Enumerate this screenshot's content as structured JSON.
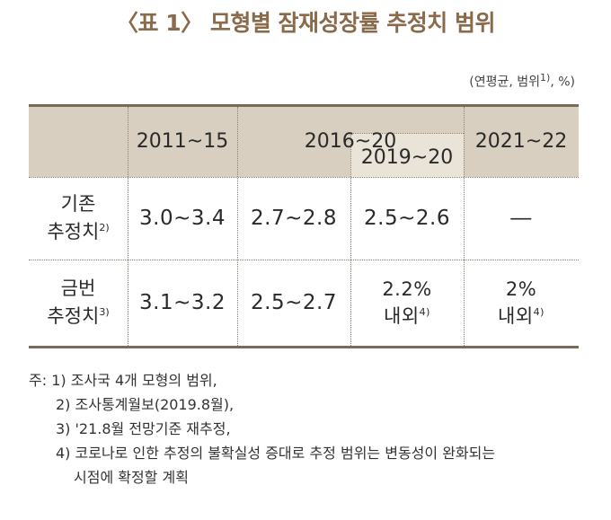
{
  "title": "〈표 1〉 모형별 잠재성장률 추정치 범위",
  "unit": "(연평균, 범위",
  "unit_sup": "1)",
  "unit_tail": ", %)",
  "header": {
    "col1": "2011~15",
    "col2": "2016~20",
    "col3": "2019~20",
    "col4": "2021~22"
  },
  "rows": [
    {
      "label_l1": "기존",
      "label_l2": "추정치",
      "label_sup": "2)",
      "v1": "3.0~3.4",
      "v2": "2.7~2.8",
      "v3": "2.5~2.6",
      "v4": "―"
    },
    {
      "label_l1": "금번",
      "label_l2": "추정치",
      "label_sup": "3)",
      "v1": "3.1~3.2",
      "v2": "2.5~2.7",
      "v3_l1": "2.2%",
      "v3_l2": "내외",
      "v3_sup": "4)",
      "v4_l1": "2%",
      "v4_l2": "내외",
      "v4_sup": "4)"
    }
  ],
  "notes": {
    "prefix": "주:",
    "n1": "1) 조사국 4개 모형의 범위,",
    "n2": "2) 조사통계월보(2019.8월),",
    "n3": "3) '21.8월 전망기준 재추정,",
    "n4a": "4) 코로나로 인한 추정의 불확실성 증대로 추정 범위는 변동성이 완화되는",
    "n4b": "시점에 확정할 계획"
  }
}
